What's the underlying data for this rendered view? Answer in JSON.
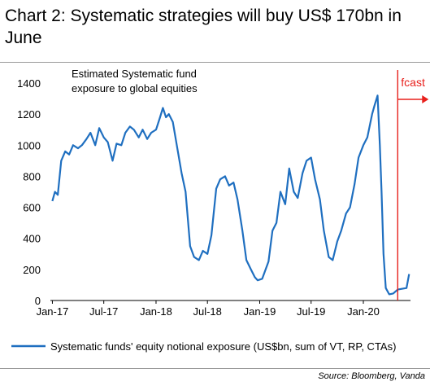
{
  "title": "Chart 2: Systematic strategies will buy US$ 170bn in June",
  "source": "Source: Bloomberg, Vanda",
  "colors": {
    "series": "#1f6fc0",
    "forecast": "#e8201c",
    "axis": "#000000"
  },
  "chart_data": {
    "type": "line",
    "annotation": "Estimated Systematic fund exposure to global equities",
    "annotation_lines": [
      "Estimated Systematic fund",
      "exposure to global equities"
    ],
    "forecast_label": "fcast",
    "forecast_start": "2020-05-01",
    "xlabel": "",
    "ylabel": "",
    "ylim": [
      0,
      1400
    ],
    "yticks": [
      0,
      200,
      400,
      600,
      800,
      1000,
      1200,
      1400
    ],
    "xlim": [
      "2016-12-25",
      "2020-06-15"
    ],
    "xticks": [
      {
        "label": "Jan-17",
        "date": "2017-01-01"
      },
      {
        "label": "Jul-17",
        "date": "2017-07-01"
      },
      {
        "label": "Jan-18",
        "date": "2018-01-01"
      },
      {
        "label": "Jul-18",
        "date": "2018-07-01"
      },
      {
        "label": "Jan-19",
        "date": "2019-01-01"
      },
      {
        "label": "Jul-19",
        "date": "2019-07-01"
      },
      {
        "label": "Jan-20",
        "date": "2020-01-01"
      }
    ],
    "grid": false,
    "legend_position": "bottom",
    "series": [
      {
        "name": "Systematic funds' equity notional exposure (US$bn, sum of VT, RP, CTAs)",
        "x": [
          "2017-01-01",
          "2017-01-10",
          "2017-01-20",
          "2017-02-01",
          "2017-02-15",
          "2017-03-01",
          "2017-03-15",
          "2017-04-01",
          "2017-04-15",
          "2017-05-01",
          "2017-05-15",
          "2017-06-01",
          "2017-06-15",
          "2017-07-01",
          "2017-07-15",
          "2017-08-01",
          "2017-08-15",
          "2017-09-01",
          "2017-09-15",
          "2017-10-01",
          "2017-10-15",
          "2017-11-01",
          "2017-11-15",
          "2017-12-01",
          "2017-12-15",
          "2018-01-01",
          "2018-01-15",
          "2018-01-25",
          "2018-02-05",
          "2018-02-15",
          "2018-03-01",
          "2018-03-15",
          "2018-04-01",
          "2018-04-15",
          "2018-05-01",
          "2018-05-15",
          "2018-06-01",
          "2018-06-15",
          "2018-07-01",
          "2018-07-15",
          "2018-08-01",
          "2018-08-15",
          "2018-09-01",
          "2018-09-15",
          "2018-10-01",
          "2018-10-15",
          "2018-11-01",
          "2018-11-15",
          "2018-12-01",
          "2018-12-15",
          "2018-12-25",
          "2019-01-10",
          "2019-02-01",
          "2019-02-15",
          "2019-03-01",
          "2019-03-15",
          "2019-04-01",
          "2019-04-15",
          "2019-05-01",
          "2019-05-15",
          "2019-06-01",
          "2019-06-15",
          "2019-07-01",
          "2019-07-15",
          "2019-08-01",
          "2019-08-15",
          "2019-09-01",
          "2019-09-15",
          "2019-10-01",
          "2019-10-15",
          "2019-11-01",
          "2019-11-15",
          "2019-12-01",
          "2019-12-15",
          "2020-01-01",
          "2020-01-15",
          "2020-02-01",
          "2020-02-10",
          "2020-02-20",
          "2020-02-28",
          "2020-03-05",
          "2020-03-12",
          "2020-03-20",
          "2020-04-01",
          "2020-04-15",
          "2020-05-01",
          "2020-05-15",
          "2020-06-01",
          "2020-06-10"
        ],
        "values": [
          640,
          700,
          680,
          900,
          960,
          940,
          1000,
          980,
          1000,
          1040,
          1080,
          1000,
          1110,
          1050,
          1020,
          900,
          1010,
          1000,
          1080,
          1120,
          1100,
          1050,
          1100,
          1040,
          1080,
          1100,
          1180,
          1240,
          1180,
          1200,
          1150,
          1000,
          820,
          700,
          350,
          280,
          260,
          320,
          300,
          420,
          720,
          780,
          800,
          740,
          760,
          650,
          450,
          260,
          200,
          150,
          130,
          140,
          250,
          450,
          500,
          700,
          620,
          850,
          700,
          660,
          820,
          900,
          920,
          780,
          650,
          450,
          280,
          260,
          380,
          450,
          560,
          600,
          750,
          920,
          1000,
          1050,
          1200,
          1260,
          1320,
          1000,
          700,
          300,
          80,
          40,
          45,
          70,
          75,
          80,
          170
        ]
      }
    ]
  }
}
